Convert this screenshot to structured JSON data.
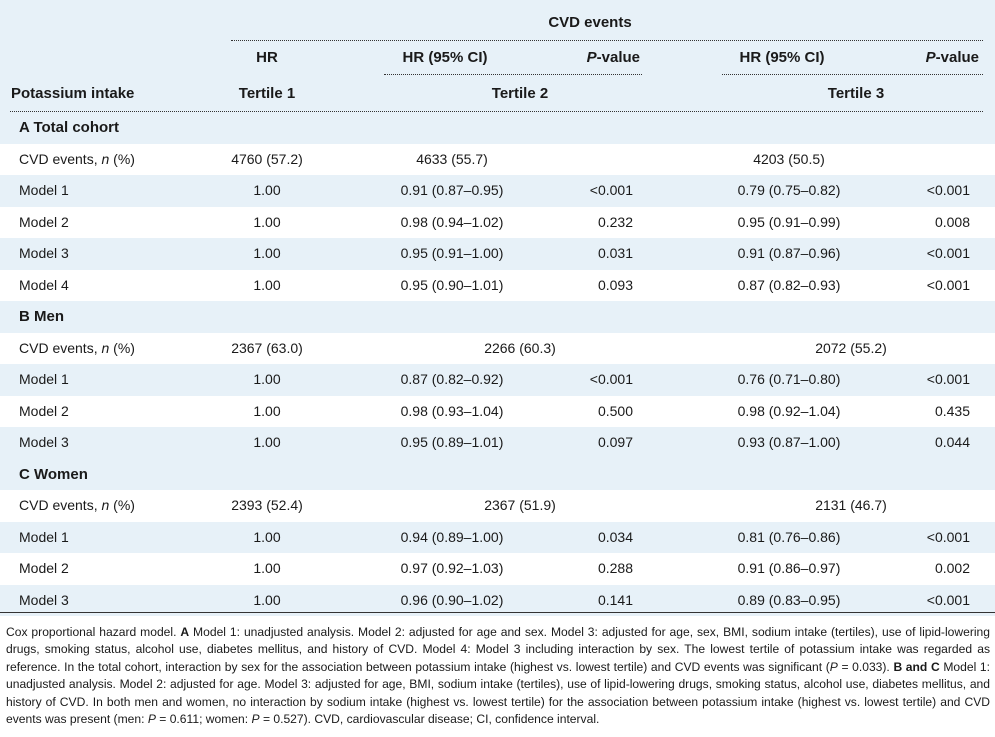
{
  "header": {
    "group_title": "CVD events",
    "row_header": "Potassium intake",
    "hr_label": "HR",
    "hr_ci_label": "HR (95% CI)",
    "p_prefix": "P",
    "p_suffix": "-value",
    "tertile1": "Tertile 1",
    "tertile2": "Tertile 2",
    "tertile3": "Tertile 3"
  },
  "sections": [
    {
      "title": "A Total cohort",
      "events": {
        "label": "CVD events, ",
        "n": "n",
        "pct": " (%)",
        "t1": "4760 (57.2)",
        "t2": "4633 (55.7)",
        "t3": "4203 (50.5)"
      },
      "rows": [
        {
          "model": "Model 1",
          "t1": "1.00",
          "t2": "0.91 (0.87–0.95)",
          "p2": "<0.001",
          "t3": "0.79 (0.75–0.82)",
          "p3": "<0.001"
        },
        {
          "model": "Model 2",
          "t1": "1.00",
          "t2": "0.98 (0.94–1.02)",
          "p2": "0.232",
          "t3": "0.95 (0.91–0.99)",
          "p3": "0.008"
        },
        {
          "model": "Model 3",
          "t1": "1.00",
          "t2": "0.95 (0.91–1.00)",
          "p2": "0.031",
          "t3": "0.91 (0.87–0.96)",
          "p3": "<0.001"
        },
        {
          "model": "Model 4",
          "t1": "1.00",
          "t2": "0.95 (0.90–1.01)",
          "p2": "0.093",
          "t3": "0.87 (0.82–0.93)",
          "p3": "<0.001"
        }
      ]
    },
    {
      "title": "B Men",
      "events": {
        "label": "CVD events, ",
        "n": "n",
        "pct": " (%)",
        "t1": "2367 (63.0)",
        "t2": "2266 (60.3)",
        "t3": "2072 (55.2)"
      },
      "rows": [
        {
          "model": "Model 1",
          "t1": "1.00",
          "t2": "0.87 (0.82–0.92)",
          "p2": "<0.001",
          "t3": "0.76 (0.71–0.80)",
          "p3": "<0.001"
        },
        {
          "model": "Model 2",
          "t1": "1.00",
          "t2": "0.98 (0.93–1.04)",
          "p2": "0.500",
          "t3": "0.98 (0.92–1.04)",
          "p3": "0.435"
        },
        {
          "model": "Model 3",
          "t1": "1.00",
          "t2": "0.95 (0.89–1.01)",
          "p2": "0.097",
          "t3": "0.93 (0.87–1.00)",
          "p3": "0.044"
        }
      ]
    },
    {
      "title": "C Women",
      "events": {
        "label": "CVD events, ",
        "n": "n",
        "pct": " (%)",
        "t1": "2393 (52.4)",
        "t2": "2367 (51.9)",
        "t3": "2131 (46.7)"
      },
      "rows": [
        {
          "model": "Model 1",
          "t1": "1.00",
          "t2": "0.94 (0.89–1.00)",
          "p2": "0.034",
          "t3": "0.81 (0.76–0.86)",
          "p3": "<0.001"
        },
        {
          "model": "Model 2",
          "t1": "1.00",
          "t2": "0.97 (0.92–1.03)",
          "p2": "0.288",
          "t3": "0.91 (0.86–0.97)",
          "p3": "0.002"
        },
        {
          "model": "Model 3",
          "t1": "1.00",
          "t2": "0.96 (0.90–1.02)",
          "p2": "0.141",
          "t3": "0.89 (0.83–0.95)",
          "p3": "<0.001"
        }
      ]
    }
  ],
  "footnote": {
    "p1": "Cox proportional hazard model. ",
    "a_bold": "A",
    "p2": " Model 1: unadjusted analysis. Model 2: adjusted for age and sex. Model 3: adjusted for age, sex, BMI, sodium intake (tertiles), use of lipid-lowering drugs, smoking status, alcohol use, diabetes mellitus, and history of CVD. Model 4: Model 3 including interaction by sex. The lowest tertile of potassium intake was regarded as reference. In the total cohort, interaction by sex for the association between potassium intake (highest vs. lowest tertile) and CVD events was significant (",
    "p3": "P",
    "p4": " = 0.033). ",
    "bc_bold": "B and C",
    "p5": " Model 1: unadjusted analysis. Model 2: adjusted for age. Model 3: adjusted for age, BMI, sodium intake (tertiles), use of lipid-lowering drugs, smoking status, alcohol use, diabetes mellitus, and history of CVD. In both men and women, no interaction by sodium intake (highest vs. lowest tertile) for the association between potassium intake (highest vs. lowest tertile) and CVD events was present (men: ",
    "p6": "P",
    "p7": " = 0.611; women: ",
    "p8": "P",
    "p9": " = 0.527). CVD, cardiovascular disease; CI, confidence interval."
  }
}
